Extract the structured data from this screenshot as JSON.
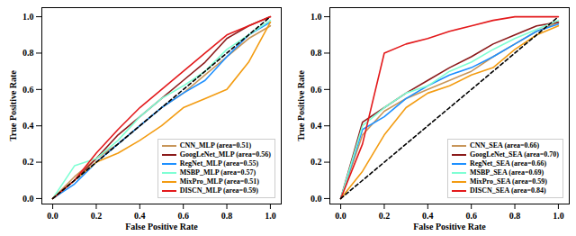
{
  "chart_data": [
    {
      "type": "line",
      "xlabel": "False Positive Rate",
      "ylabel": "True Positive Rate",
      "x": [
        0,
        0.1,
        0.2,
        0.3,
        0.4,
        0.5,
        0.6,
        0.7,
        0.8,
        0.9,
        1.0
      ],
      "xlim": [
        -0.05,
        1.05
      ],
      "ylim": [
        -0.03,
        1.05
      ],
      "xticks": [
        {
          "value": 0,
          "label": "0.0"
        },
        {
          "value": 0.2,
          "label": "0.2"
        },
        {
          "value": 0.4,
          "label": "0.4"
        },
        {
          "value": 0.6,
          "label": "0.6"
        },
        {
          "value": 0.8,
          "label": "0.8"
        },
        {
          "value": 1.0,
          "label": "1.0"
        }
      ],
      "yticks": [
        {
          "value": 0,
          "label": "0.0"
        },
        {
          "value": 0.2,
          "label": "0.2"
        },
        {
          "value": 0.4,
          "label": "0.4"
        },
        {
          "value": 0.6,
          "label": "0.6"
        },
        {
          "value": 0.8,
          "label": "0.8"
        },
        {
          "value": 1.0,
          "label": "1.0"
        }
      ],
      "legend": "lower right",
      "grid": false,
      "series": [
        {
          "name": "CNN_MLP (area=0.51)",
          "color": "#c8965a",
          "values": [
            0,
            0.12,
            0.22,
            0.3,
            0.4,
            0.5,
            0.58,
            0.68,
            0.78,
            0.88,
            0.95
          ]
        },
        {
          "name": "GoogLeNet_MLP (area=0.56)",
          "color": "#8b1a1a",
          "values": [
            0,
            0.1,
            0.22,
            0.35,
            0.45,
            0.55,
            0.65,
            0.75,
            0.88,
            0.95,
            1.0
          ]
        },
        {
          "name": "RegNet_MLP (area=0.55)",
          "color": "#1e90ff",
          "values": [
            0,
            0.08,
            0.2,
            0.3,
            0.4,
            0.5,
            0.58,
            0.65,
            0.78,
            0.9,
            0.97
          ]
        },
        {
          "name": "MSBP_MLP (area=0.57)",
          "color": "#7fffd4",
          "values": [
            0,
            0.18,
            0.22,
            0.32,
            0.45,
            0.55,
            0.62,
            0.7,
            0.82,
            0.9,
            0.98
          ]
        },
        {
          "name": "MixPro_MLP (area=0.51)",
          "color": "#f39c12",
          "values": [
            0,
            0.1,
            0.2,
            0.25,
            0.32,
            0.4,
            0.5,
            0.55,
            0.6,
            0.75,
            0.97
          ]
        },
        {
          "name": "DISCN_MLP (area=0.59)",
          "color": "#e31a1c",
          "values": [
            0,
            0.1,
            0.25,
            0.38,
            0.5,
            0.6,
            0.7,
            0.8,
            0.9,
            0.95,
            1.0
          ]
        },
        {
          "color": "#000000",
          "line_style": "dashed",
          "values": [
            0,
            0.1,
            0.2,
            0.3,
            0.4,
            0.5,
            0.6,
            0.7,
            0.8,
            0.9,
            1.0
          ]
        }
      ]
    },
    {
      "type": "line",
      "xlabel": "False Positive Rate",
      "ylabel": "True Positive Rate",
      "x": [
        0,
        0.1,
        0.2,
        0.3,
        0.4,
        0.5,
        0.6,
        0.7,
        0.8,
        0.9,
        1.0
      ],
      "xlim": [
        -0.05,
        1.05
      ],
      "ylim": [
        -0.03,
        1.05
      ],
      "xticks": [
        {
          "value": 0,
          "label": "0.0"
        },
        {
          "value": 0.2,
          "label": "0.2"
        },
        {
          "value": 0.4,
          "label": "0.4"
        },
        {
          "value": 0.6,
          "label": "0.6"
        },
        {
          "value": 0.8,
          "label": "0.8"
        },
        {
          "value": 1.0,
          "label": "1.0"
        }
      ],
      "yticks": [
        {
          "value": 0,
          "label": "0.0"
        },
        {
          "value": 0.2,
          "label": "0.2"
        },
        {
          "value": 0.4,
          "label": "0.4"
        },
        {
          "value": 0.6,
          "label": "0.6"
        },
        {
          "value": 0.8,
          "label": "0.8"
        },
        {
          "value": 1.0,
          "label": "1.0"
        }
      ],
      "legend": "lower right",
      "grid": false,
      "series": [
        {
          "name": "CNN_SEA (area=0.66)",
          "color": "#c8965a",
          "values": [
            0,
            0.35,
            0.48,
            0.55,
            0.6,
            0.65,
            0.7,
            0.78,
            0.85,
            0.92,
            0.97
          ]
        },
        {
          "name": "GoogLeNet_SEA (area=0.70)",
          "color": "#8b1a1a",
          "values": [
            0,
            0.42,
            0.5,
            0.58,
            0.65,
            0.72,
            0.78,
            0.85,
            0.9,
            0.95,
            0.97
          ]
        },
        {
          "name": "RegNet_SEA (area=0.66)",
          "color": "#1e90ff",
          "values": [
            0,
            0.38,
            0.45,
            0.55,
            0.62,
            0.68,
            0.72,
            0.78,
            0.85,
            0.92,
            0.96
          ]
        },
        {
          "name": "MSBP_SEA (area=0.69)",
          "color": "#7fffd4",
          "values": [
            0,
            0.4,
            0.5,
            0.58,
            0.62,
            0.7,
            0.75,
            0.82,
            0.88,
            0.93,
            0.98
          ]
        },
        {
          "name": "MixPro_SEA (area=0.59)",
          "color": "#f39c12",
          "values": [
            0,
            0.15,
            0.35,
            0.5,
            0.58,
            0.62,
            0.68,
            0.72,
            0.82,
            0.9,
            0.95
          ]
        },
        {
          "name": "DISCN_SEA (area=0.84)",
          "color": "#e31a1c",
          "values": [
            0,
            0.3,
            0.8,
            0.85,
            0.88,
            0.92,
            0.95,
            0.98,
            1.0,
            1.0,
            1.0
          ]
        },
        {
          "color": "#000000",
          "line_style": "dashed",
          "values": [
            0,
            0.1,
            0.2,
            0.3,
            0.4,
            0.5,
            0.6,
            0.7,
            0.8,
            0.9,
            1.0
          ]
        }
      ]
    }
  ]
}
